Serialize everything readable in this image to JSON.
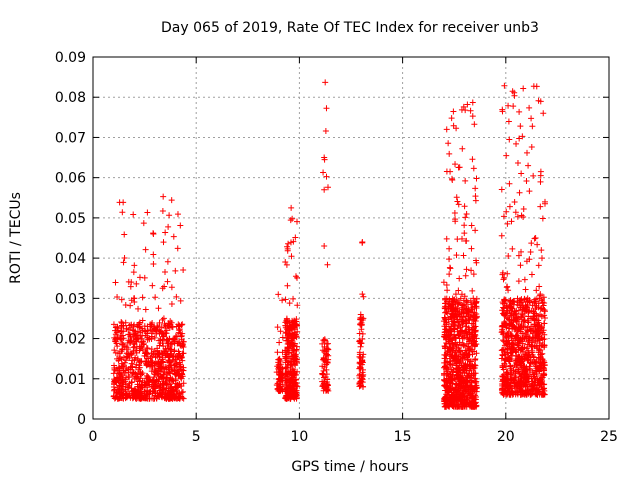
{
  "chart_data": {
    "type": "scatter",
    "title": "Day 065 of 2019, Rate Of TEC Index for receiver unb3",
    "xlabel": "GPS time / hours",
    "ylabel": "ROTI / TECUs",
    "xlim": [
      0,
      25
    ],
    "ylim": [
      0,
      0.09
    ],
    "xticks": [
      "0",
      "5",
      "10",
      "15",
      "20",
      "25"
    ],
    "yticks": [
      "0",
      "0.01",
      "0.02",
      "0.03",
      "0.04",
      "0.05",
      "0.06",
      "0.07",
      "0.08",
      "0.09"
    ],
    "grid": true,
    "marker": "+",
    "color": "#ff0000",
    "clusters": [
      {
        "x": [
          1.0,
          4.4
        ],
        "y_base": [
          0.005,
          0.024
        ],
        "y_peak": 0.055,
        "density": "high"
      },
      {
        "x": [
          8.9,
          9.2
        ],
        "y_base": [
          0.007,
          0.015
        ],
        "y_peak": 0.031,
        "density": "low"
      },
      {
        "x": [
          9.3,
          9.9
        ],
        "y_base": [
          0.005,
          0.025
        ],
        "y_peak": 0.053,
        "density": "medium"
      },
      {
        "x": [
          11.1,
          11.4
        ],
        "y_base": [
          0.007,
          0.02
        ],
        "y_peak": 0.084,
        "density": "low"
      },
      {
        "x": [
          12.9,
          13.1
        ],
        "y_base": [
          0.008,
          0.026
        ],
        "y_peak": 0.044,
        "density": "low"
      },
      {
        "x": [
          17.0,
          18.6
        ],
        "y_base": [
          0.003,
          0.03
        ],
        "y_peak": 0.079,
        "density": "high"
      },
      {
        "x": [
          19.8,
          21.9
        ],
        "y_base": [
          0.006,
          0.03
        ],
        "y_peak": 0.083,
        "density": "high"
      }
    ],
    "outliers": [
      {
        "x": 11.25,
        "y": 0.0837
      },
      {
        "x": 11.2,
        "y": 0.065
      },
      {
        "x": 11.22,
        "y": 0.0645
      },
      {
        "x": 11.2,
        "y": 0.057
      },
      {
        "x": 11.2,
        "y": 0.043
      },
      {
        "x": 18.4,
        "y": 0.0787
      },
      {
        "x": 18.4,
        "y": 0.0753
      },
      {
        "x": 18.45,
        "y": 0.0623
      },
      {
        "x": 21.5,
        "y": 0.0827
      },
      {
        "x": 21.7,
        "y": 0.0615
      },
      {
        "x": 20.2,
        "y": 0.0528
      },
      {
        "x": 3.4,
        "y": 0.0553
      },
      {
        "x": 9.6,
        "y": 0.0525
      },
      {
        "x": 13.05,
        "y": 0.044
      },
      {
        "x": 17.3,
        "y": 0.0615
      }
    ]
  }
}
